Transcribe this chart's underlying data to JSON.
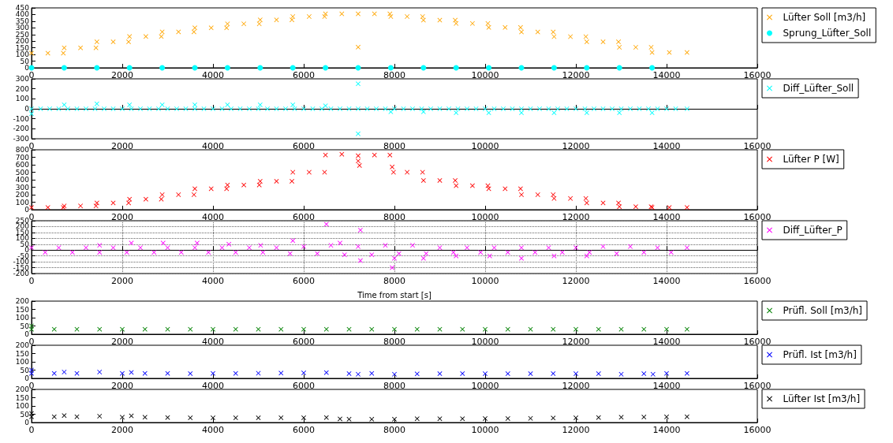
{
  "chart_data": [
    {
      "type": "scatter",
      "xlim": [
        0,
        16000
      ],
      "xticks": [
        0,
        2000,
        4000,
        6000,
        8000,
        10000,
        12000,
        14000,
        16000
      ],
      "ylim": [
        0,
        450
      ],
      "yticks": [
        0,
        50,
        100,
        150,
        200,
        250,
        300,
        350,
        400,
        450
      ],
      "legend": "right",
      "marker": "cross",
      "series": [
        {
          "name": "Lüfter Soll [m3/h]",
          "color": "#ffa500",
          "x": [
            0,
            360,
            700,
            720,
            1080,
            1420,
            1440,
            1800,
            2140,
            2160,
            2520,
            2860,
            2880,
            3240,
            3580,
            3600,
            3960,
            4300,
            4320,
            4680,
            5020,
            5040,
            5400,
            5740,
            5760,
            6120,
            6460,
            6480,
            6840,
            7200,
            7200,
            7560,
            7900,
            7920,
            8280,
            8620,
            8640,
            9000,
            9340,
            9360,
            9720,
            10060,
            10080,
            10440,
            10780,
            10800,
            11160,
            11500,
            11520,
            11880,
            12220,
            12240,
            12600,
            12940,
            12960,
            13320,
            13660,
            13680,
            14060,
            14450
          ],
          "values": [
            110,
            110,
            110,
            150,
            150,
            150,
            195,
            195,
            195,
            235,
            235,
            235,
            270,
            270,
            270,
            300,
            300,
            300,
            330,
            330,
            330,
            360,
            360,
            360,
            385,
            385,
            385,
            405,
            405,
            405,
            155,
            405,
            405,
            385,
            385,
            385,
            358,
            358,
            358,
            333,
            333,
            333,
            303,
            303,
            303,
            269,
            269,
            269,
            234,
            234,
            234,
            195,
            195,
            195,
            154,
            154,
            154,
            115,
            115,
            115
          ]
        },
        {
          "name": "Sprung_Lüfter_Soll",
          "color": "#00ffff",
          "marker": "circle",
          "x": [
            0,
            720,
            1440,
            2160,
            2880,
            3600,
            4320,
            5040,
            5760,
            6480,
            7200,
            7920,
            8640,
            9360,
            10080,
            10800,
            11520,
            12240,
            12960,
            13680
          ],
          "values": [
            0,
            0,
            0,
            0,
            0,
            0,
            0,
            0,
            0,
            0,
            0,
            0,
            0,
            0,
            0,
            0,
            0,
            0,
            0,
            0
          ]
        }
      ]
    },
    {
      "type": "scatter",
      "xlim": [
        0,
        16000
      ],
      "xticks": [
        0,
        2000,
        4000,
        6000,
        8000,
        10000,
        12000,
        14000,
        16000
      ],
      "ylim": [
        -300,
        300
      ],
      "yticks": [
        -300,
        -200,
        -100,
        0,
        100,
        200,
        300
      ],
      "legend": "right",
      "marker": "cross",
      "series": [
        {
          "name": "Diff_Lüfter_Soll",
          "color": "#00ffff",
          "x": [
            0,
            200,
            400,
            600,
            800,
            1000,
            1200,
            1400,
            1600,
            1800,
            2000,
            2200,
            2400,
            2600,
            2800,
            3000,
            3200,
            3400,
            3600,
            3800,
            4000,
            4200,
            4400,
            4600,
            4800,
            5000,
            5200,
            5400,
            5600,
            5800,
            6000,
            6200,
            6400,
            6600,
            6800,
            7000,
            7200,
            7400,
            7600,
            7800,
            8000,
            8200,
            8400,
            8600,
            8800,
            9000,
            9200,
            9400,
            9600,
            9800,
            10000,
            10200,
            10400,
            10600,
            10800,
            11000,
            11200,
            11400,
            11600,
            11800,
            12000,
            12200,
            12400,
            12600,
            12800,
            13000,
            13200,
            13400,
            13600,
            13800,
            14000,
            14200,
            14450,
            0,
            720,
            1440,
            2160,
            2880,
            3600,
            4320,
            5040,
            5760,
            6480,
            7200,
            7200,
            7920,
            8640,
            9360,
            10080,
            10800,
            11520,
            12240,
            12960,
            13680
          ],
          "values": [
            0,
            0,
            0,
            0,
            0,
            0,
            0,
            0,
            0,
            0,
            0,
            0,
            0,
            0,
            0,
            0,
            0,
            0,
            0,
            0,
            0,
            0,
            0,
            0,
            0,
            0,
            0,
            0,
            0,
            0,
            0,
            0,
            0,
            0,
            0,
            0,
            0,
            0,
            0,
            0,
            0,
            0,
            0,
            0,
            0,
            0,
            0,
            0,
            0,
            0,
            0,
            0,
            0,
            0,
            0,
            0,
            0,
            0,
            0,
            0,
            0,
            0,
            0,
            0,
            0,
            0,
            0,
            0,
            0,
            0,
            0,
            0,
            0,
            -50,
            40,
            50,
            40,
            40,
            40,
            40,
            40,
            40,
            30,
            250,
            -250,
            -30,
            -30,
            -40,
            -40,
            -40,
            -40,
            -40,
            -40,
            -40
          ]
        }
      ]
    },
    {
      "type": "scatter",
      "xlim": [
        0,
        16000
      ],
      "xticks": [
        0,
        2000,
        4000,
        6000,
        8000,
        10000,
        12000,
        14000,
        16000
      ],
      "ylim": [
        0,
        800
      ],
      "yticks": [
        0,
        100,
        200,
        300,
        400,
        500,
        600,
        700,
        800
      ],
      "legend": "right",
      "marker": "cross",
      "series": [
        {
          "name": "Lüfter P [W]",
          "color": "#ff0000",
          "x": [
            0,
            360,
            700,
            720,
            1080,
            1420,
            1440,
            1800,
            2140,
            2160,
            2520,
            2860,
            2880,
            3240,
            3580,
            3600,
            3960,
            4300,
            4320,
            4680,
            5020,
            5040,
            5400,
            5740,
            5760,
            6120,
            6460,
            6480,
            6840,
            7200,
            7200,
            7230,
            7560,
            7900,
            7950,
            7980,
            8280,
            8620,
            8640,
            9000,
            9340,
            9360,
            9720,
            10060,
            10080,
            10440,
            10780,
            10800,
            11160,
            11500,
            11520,
            11880,
            12220,
            12240,
            12600,
            12940,
            12960,
            13320,
            13660,
            13680,
            14060,
            14450
          ],
          "values": [
            30,
            30,
            30,
            50,
            50,
            50,
            90,
            90,
            90,
            140,
            140,
            140,
            200,
            200,
            200,
            280,
            280,
            280,
            330,
            330,
            330,
            380,
            380,
            380,
            500,
            500,
            500,
            730,
            740,
            720,
            650,
            590,
            730,
            730,
            570,
            500,
            500,
            500,
            390,
            390,
            390,
            320,
            320,
            320,
            280,
            280,
            280,
            200,
            200,
            200,
            150,
            150,
            150,
            90,
            90,
            90,
            40,
            40,
            40,
            30,
            30,
            30
          ]
        }
      ]
    },
    {
      "type": "scatter",
      "xlim": [
        0,
        16000
      ],
      "xticks": [
        0,
        2000,
        4000,
        6000,
        8000,
        10000,
        12000,
        14000,
        16000
      ],
      "ylim": [
        -200,
        250
      ],
      "yticks": [
        -200,
        -150,
        -100,
        -50,
        0,
        50,
        100,
        150,
        200,
        250
      ],
      "xlabel": "Time from start [s]",
      "grid": true,
      "legend": "right",
      "marker": "cross",
      "series": [
        {
          "name": "Diff_Lüfter_P",
          "color": "#ff00ff",
          "x": [
            0,
            300,
            600,
            900,
            1200,
            1500,
            1800,
            2100,
            2400,
            2700,
            3000,
            3300,
            3600,
            3900,
            4200,
            4500,
            4800,
            5100,
            5400,
            5700,
            6000,
            6300,
            6600,
            6900,
            7200,
            7500,
            7800,
            8100,
            8400,
            8700,
            9000,
            9300,
            9600,
            9900,
            10200,
            10500,
            10800,
            11100,
            11400,
            11700,
            12000,
            12300,
            12600,
            12900,
            13200,
            13500,
            13800,
            14100,
            14450,
            1500,
            2200,
            2900,
            3650,
            4350,
            5050,
            5760,
            6500,
            6800,
            7250,
            7250,
            7950,
            8000,
            8640,
            9360,
            10100,
            10800,
            11520,
            12240
          ],
          "values": [
            20,
            -20,
            20,
            -20,
            20,
            -20,
            20,
            -20,
            20,
            -20,
            20,
            -20,
            20,
            -20,
            20,
            -20,
            20,
            -20,
            20,
            -30,
            30,
            -30,
            40,
            -40,
            30,
            -40,
            40,
            -30,
            40,
            -30,
            20,
            -20,
            20,
            -20,
            20,
            -20,
            20,
            -20,
            20,
            -20,
            20,
            -20,
            30,
            -30,
            30,
            -20,
            20,
            -20,
            20,
            40,
            60,
            60,
            60,
            50,
            40,
            80,
            220,
            60,
            170,
            -90,
            -150,
            -70,
            -70,
            -50,
            -50,
            -70,
            -50,
            -50
          ]
        }
      ]
    },
    {
      "type": "scatter",
      "xlim": [
        0,
        16000
      ],
      "xticks": [
        0,
        2000,
        4000,
        6000,
        8000,
        10000,
        12000,
        14000,
        16000
      ],
      "ylim": [
        0,
        200
      ],
      "yticks": [
        0,
        50,
        100,
        150,
        200
      ],
      "legend": "right",
      "marker": "cross",
      "series": [
        {
          "name": "Prüfl. Soll [m3/h]",
          "color": "#008000",
          "x": [
            0,
            0,
            500,
            1000,
            1500,
            2000,
            2500,
            3000,
            3500,
            4000,
            4500,
            5000,
            5500,
            6000,
            6500,
            7000,
            7500,
            8000,
            8500,
            9000,
            9500,
            10000,
            10500,
            11000,
            11500,
            12000,
            12500,
            13000,
            13500,
            14000,
            14450
          ],
          "values": [
            50,
            30,
            30,
            30,
            30,
            30,
            30,
            30,
            30,
            30,
            30,
            30,
            30,
            30,
            30,
            30,
            30,
            30,
            30,
            30,
            30,
            30,
            30,
            30,
            30,
            30,
            30,
            30,
            30,
            30,
            30
          ]
        }
      ]
    },
    {
      "type": "scatter",
      "xlim": [
        0,
        16000
      ],
      "xticks": [
        0,
        2000,
        4000,
        6000,
        8000,
        10000,
        12000,
        14000,
        16000
      ],
      "ylim": [
        0,
        200
      ],
      "yticks": [
        0,
        50,
        100,
        150,
        200
      ],
      "legend": "right",
      "marker": "cross",
      "series": [
        {
          "name": "Prüfl. Ist [m3/h]",
          "color": "#0000ff",
          "x": [
            0,
            0,
            500,
            720,
            1000,
            1500,
            2000,
            2200,
            2500,
            3000,
            3500,
            4000,
            4500,
            5000,
            5500,
            6000,
            6500,
            7000,
            7200,
            7500,
            8000,
            8500,
            9000,
            9500,
            10000,
            10500,
            11000,
            11500,
            12000,
            12500,
            13000,
            13500,
            13700,
            14000,
            14450
          ],
          "values": [
            50,
            30,
            30,
            38,
            30,
            38,
            30,
            36,
            30,
            30,
            29,
            30,
            30,
            31,
            32,
            33,
            35,
            29,
            25,
            30,
            25,
            27,
            28,
            29,
            28,
            28,
            28,
            29,
            28,
            28,
            25,
            28,
            25,
            30,
            30
          ]
        }
      ]
    },
    {
      "type": "scatter",
      "xlim": [
        0,
        16000
      ],
      "xticks": [
        0,
        2000,
        4000,
        6000,
        8000,
        10000,
        12000,
        14000,
        16000
      ],
      "ylim": [
        0,
        200
      ],
      "yticks": [
        0,
        50,
        100,
        150,
        200
      ],
      "legend": "right",
      "marker": "cross",
      "series": [
        {
          "name": "Lüfter Ist [m3/h]",
          "color": "#000000",
          "x": [
            0,
            0,
            500,
            720,
            1000,
            1500,
            2000,
            2200,
            2500,
            3000,
            3500,
            4000,
            4500,
            5000,
            5500,
            6000,
            6500,
            6800,
            7000,
            7500,
            8000,
            8500,
            9000,
            9500,
            10000,
            10500,
            11000,
            11500,
            12000,
            12500,
            13000,
            13500,
            14000,
            14450
          ],
          "values": [
            55,
            35,
            35,
            42,
            35,
            38,
            32,
            40,
            32,
            30,
            28,
            28,
            28,
            28,
            29,
            29,
            30,
            22,
            20,
            20,
            20,
            23,
            23,
            23,
            24,
            24,
            25,
            27,
            28,
            30,
            32,
            33,
            34,
            35
          ]
        }
      ]
    }
  ]
}
